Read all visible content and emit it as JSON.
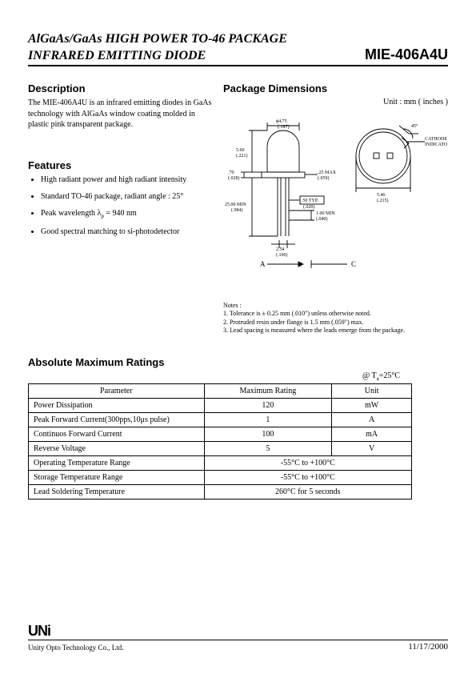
{
  "header": {
    "title_line1": "AlGaAs/GaAs HIGH POWER TO-46 PACKAGE",
    "title_line2": "INFRARED EMITTING DIODE",
    "part_number": "MIE-406A4U"
  },
  "description": {
    "heading": "Description",
    "text": "The MIE-406A4U is an infrared emitting diodes in GaAs technology with AlGaAs window coating molded in plastic pink transparent package."
  },
  "features": {
    "heading": "Features",
    "items": [
      "High radiant power and high radiant intensity",
      "Standard TO-46 package, radiant angle :  25°",
      "Peak wavelength λp = 940 nm",
      "Good spectral matching to si-photodetector"
    ]
  },
  "package": {
    "heading": "Package Dimensions",
    "unit_label": "Unit : mm ( inches )",
    "diagram": {
      "dims": {
        "dome_dia": {
          "mm": "ϕ4.75",
          "in": "(.187)"
        },
        "body_h": {
          "mm": "5.60",
          "in": "(.221)"
        },
        "flange_h": {
          "mm": ".70",
          "in": "(.028)"
        },
        "lead_len": {
          "mm": "25.00 MIN",
          "in": "(.984)"
        },
        "lead_typ": {
          "mm": ".50 TYP.",
          "in": "(.020)"
        },
        "lead_gap": {
          "mm": "1.00 MIN",
          "in": "(.040)"
        },
        "flange_max": {
          "mm": ".25 MAX",
          "in": "(.059)"
        },
        "pitch": {
          "mm": "2.54",
          "in": "(.100)"
        },
        "base_dia": {
          "mm": "5.46",
          "in": "(.215)"
        },
        "angle": "45°",
        "cathode_label": "CATHODE INDICATOR",
        "anode": "A",
        "cathode": "C"
      },
      "colors": {
        "stroke": "#000000",
        "fill": "#ffffff"
      }
    },
    "notes_heading": "Notes :",
    "notes": [
      "1. Tolerance is ± 0.25 mm (.010\") unless otherwise noted.",
      "2. Protruded resin under flange is 1.5 mm (.059\") max.",
      "3. Lead spacing is measured where the leads emerge from the package."
    ]
  },
  "ratings": {
    "heading": "Absolute Maximum Ratings",
    "condition": "@ Ta=25°C",
    "columns": [
      "Parameter",
      "Maximum  Rating",
      "Unit"
    ],
    "rows": [
      {
        "param": "Power Dissipation",
        "value": "120",
        "unit": "mW"
      },
      {
        "param": "Peak Forward Current(300pps,10μs pulse)",
        "value": "1",
        "unit": "A"
      },
      {
        "param": "Continuos Forward Current",
        "value": "100",
        "unit": "mA"
      },
      {
        "param": "Reverse Voltage",
        "value": "5",
        "unit": "V"
      },
      {
        "param": "Operating Temperature Range",
        "value": "-55°C to +100°C",
        "unit": ""
      },
      {
        "param": "Storage Temperature Range",
        "value": "-55°C to +100°C",
        "unit": ""
      },
      {
        "param": "Lead Soldering Temperature",
        "value": "260°C for 5 seconds",
        "unit": ""
      }
    ],
    "col_widths": [
      "220px",
      "160px",
      "100px"
    ]
  },
  "footer": {
    "logo_text": "UNi",
    "company": "Unity Opto Technology Co., Ltd.",
    "date": "11/17/2000"
  }
}
